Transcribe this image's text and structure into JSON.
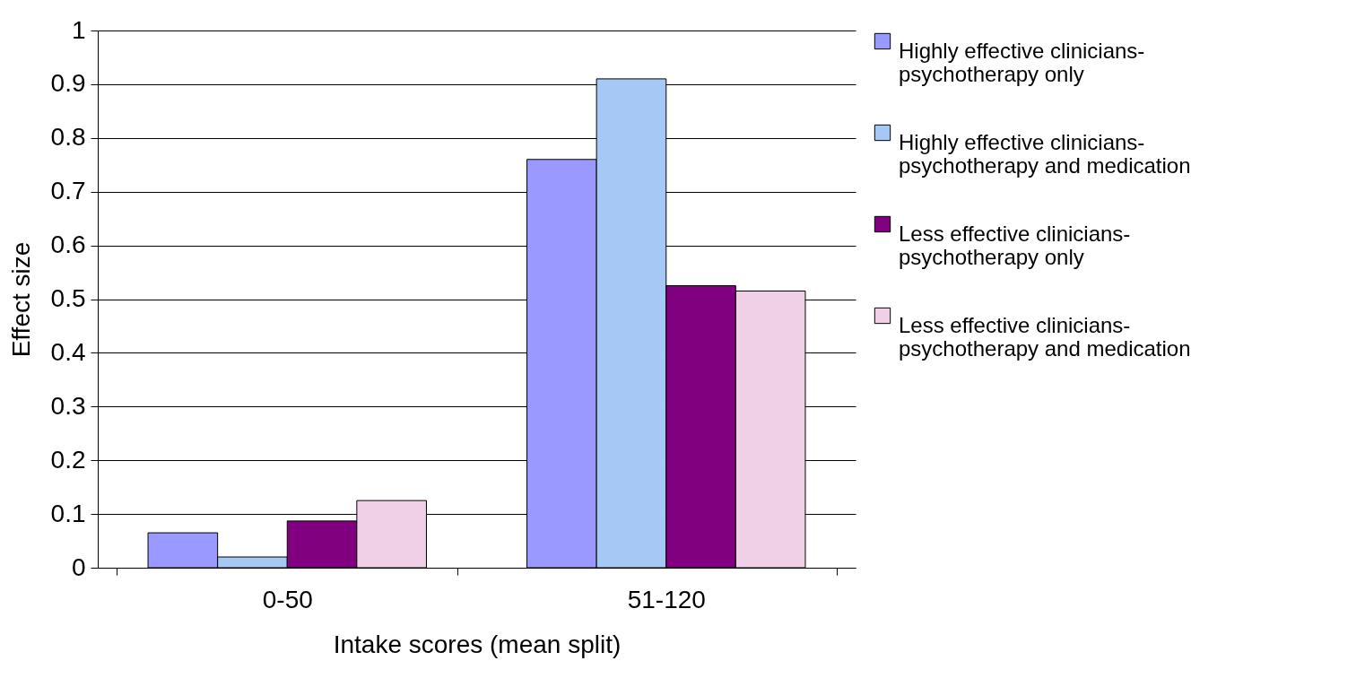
{
  "chart_data": {
    "type": "bar",
    "xlabel": "Intake scores (mean split)",
    "ylabel": "Effect size",
    "categories": [
      "0-50",
      "51-120"
    ],
    "series": [
      {
        "name": "Highly effective clinicians-psychotherapy only",
        "color": "#9999ff",
        "values": [
          0.065,
          0.76
        ]
      },
      {
        "name": "Highly effective clinicians-psychotherapy and medication",
        "color": "#a6c8f4",
        "values": [
          0.02,
          0.91
        ]
      },
      {
        "name": "Less effective clinicians-psychotherapy only",
        "color": "#800080",
        "values": [
          0.087,
          0.525
        ]
      },
      {
        "name": "Less effective clinicians-psychotherapy and medication",
        "color": "#f0d0e6",
        "values": [
          0.125,
          0.515
        ]
      }
    ],
    "ylim": [
      0,
      1
    ],
    "yticks": [
      0,
      0.1,
      0.2,
      0.3,
      0.4,
      0.5,
      0.6,
      0.7,
      0.8,
      0.9,
      1
    ],
    "grid": "y",
    "legend": "right"
  }
}
